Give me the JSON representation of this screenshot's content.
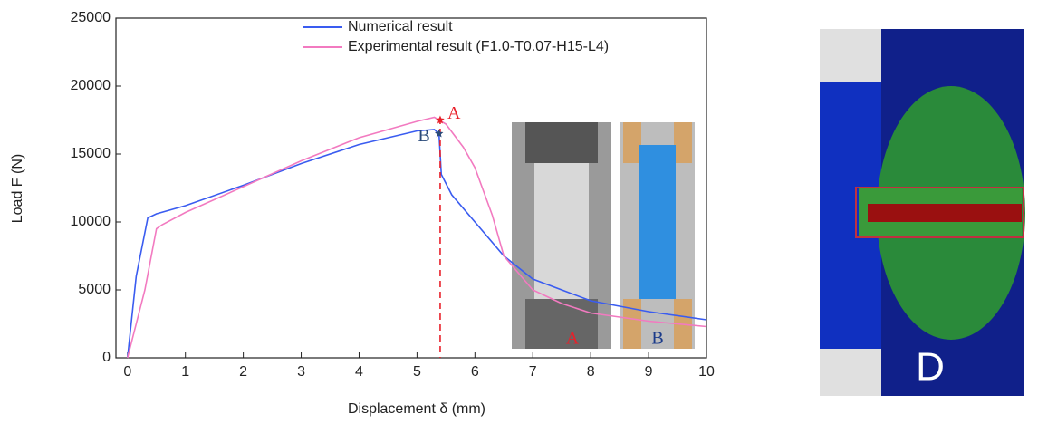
{
  "chart_data": {
    "type": "line",
    "xlabel": "Displacement δ (mm)",
    "ylabel": "Load F (N)",
    "xlim": [
      -0.2,
      10
    ],
    "ylim": [
      0,
      25000
    ],
    "xticks": [
      0,
      1,
      2,
      3,
      4,
      5,
      6,
      7,
      8,
      9,
      10
    ],
    "yticks": [
      0,
      5000,
      10000,
      15000,
      20000,
      25000
    ],
    "series": [
      {
        "name": "Numerical result",
        "color": "#3a5cf0",
        "x": [
          0,
          0.15,
          0.35,
          0.5,
          1,
          2,
          3,
          4,
          5,
          5.3,
          5.38,
          5.42,
          5.6,
          6,
          6.5,
          7,
          7.5,
          8,
          9,
          10
        ],
        "values": [
          0,
          6000,
          10300,
          10600,
          11200,
          12700,
          14300,
          15700,
          16700,
          16800,
          16500,
          13500,
          12000,
          10000,
          7500,
          5800,
          5000,
          4200,
          3400,
          2800
        ]
      },
      {
        "name": "Experimental result (F1.0-T0.07-H15-L4)",
        "color": "#f27ac0",
        "x": [
          0,
          0.3,
          0.5,
          0.6,
          1,
          2,
          3,
          4,
          5,
          5.3,
          5.5,
          5.8,
          6,
          6.3,
          6.5,
          7,
          7.5,
          8,
          9,
          10
        ],
        "values": [
          0,
          5000,
          9500,
          9800,
          10700,
          12600,
          14500,
          16200,
          17400,
          17700,
          17200,
          15500,
          14000,
          10500,
          7500,
          5000,
          4000,
          3300,
          2700,
          2300
        ]
      }
    ],
    "vline": 5.4,
    "points": [
      {
        "label": "A",
        "x": 5.4,
        "y": 17500,
        "color": "#e8202a"
      },
      {
        "label": "B",
        "x": 5.38,
        "y": 16500,
        "color": "#2a4a7a"
      }
    ],
    "inset_labels": [
      "A",
      "B"
    ],
    "panel_label": "D"
  }
}
